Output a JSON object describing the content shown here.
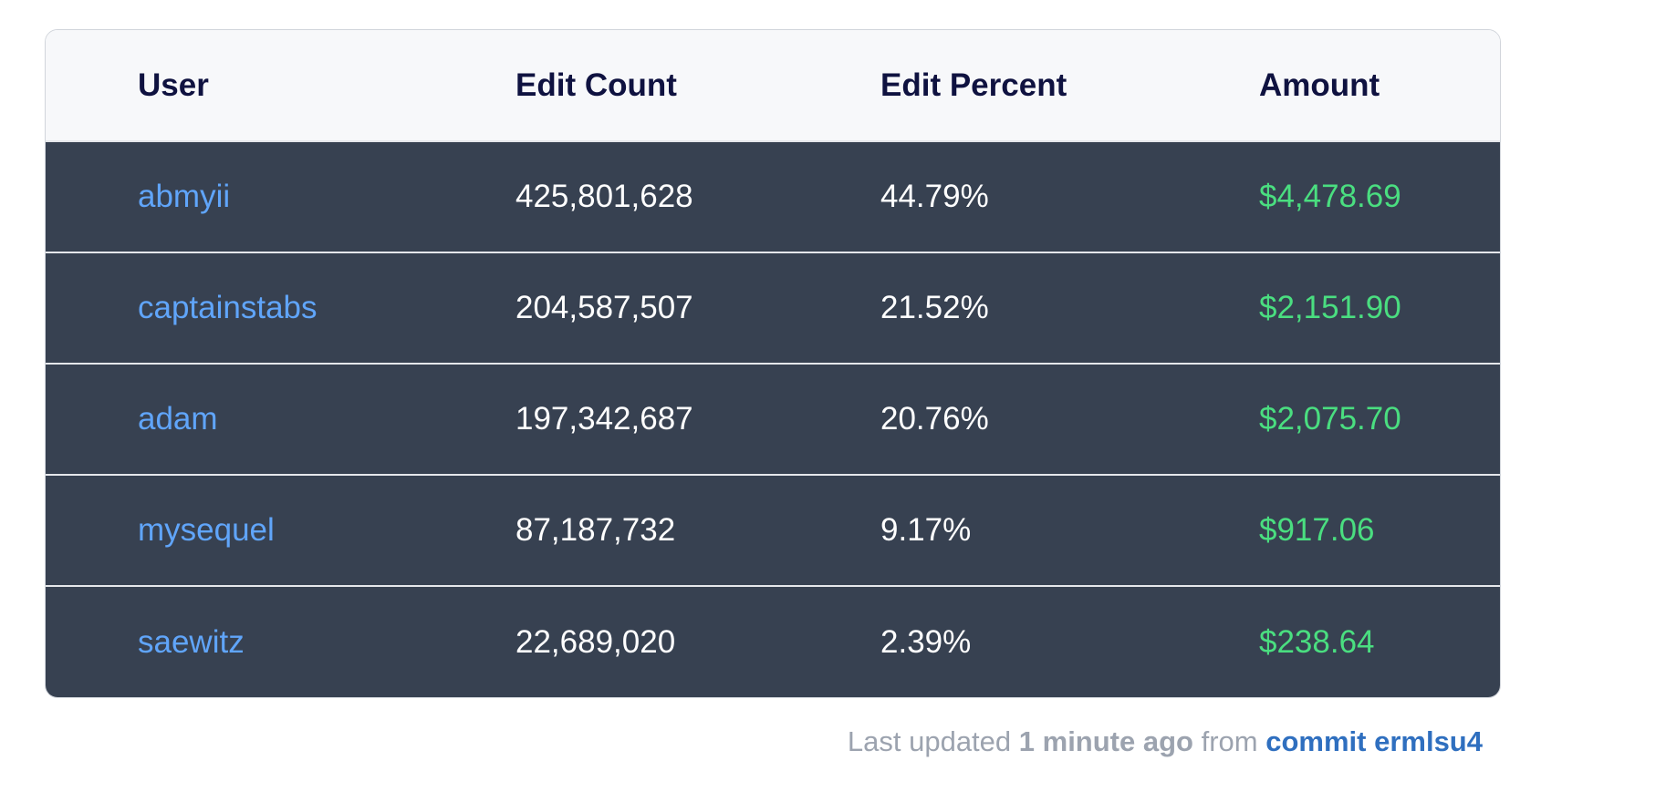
{
  "table": {
    "columns": [
      "User",
      "Edit Count",
      "Edit Percent",
      "Amount"
    ],
    "rows": [
      [
        "abmyii",
        "425,801,628",
        "44.79%",
        "$4,478.69"
      ],
      [
        "captainstabs",
        "204,587,507",
        "21.52%",
        "$2,151.90"
      ],
      [
        "adam",
        "197,342,687",
        "20.76%",
        "$2,075.70"
      ],
      [
        "mysequel",
        "87,187,732",
        "9.17%",
        "$917.06"
      ],
      [
        "saewitz",
        "22,689,020",
        "2.39%",
        "$238.64"
      ]
    ]
  },
  "footer": {
    "prefix": "Last updated",
    "time": "1 minute ago",
    "middle": "from",
    "link": "commit ermlsu4"
  }
}
